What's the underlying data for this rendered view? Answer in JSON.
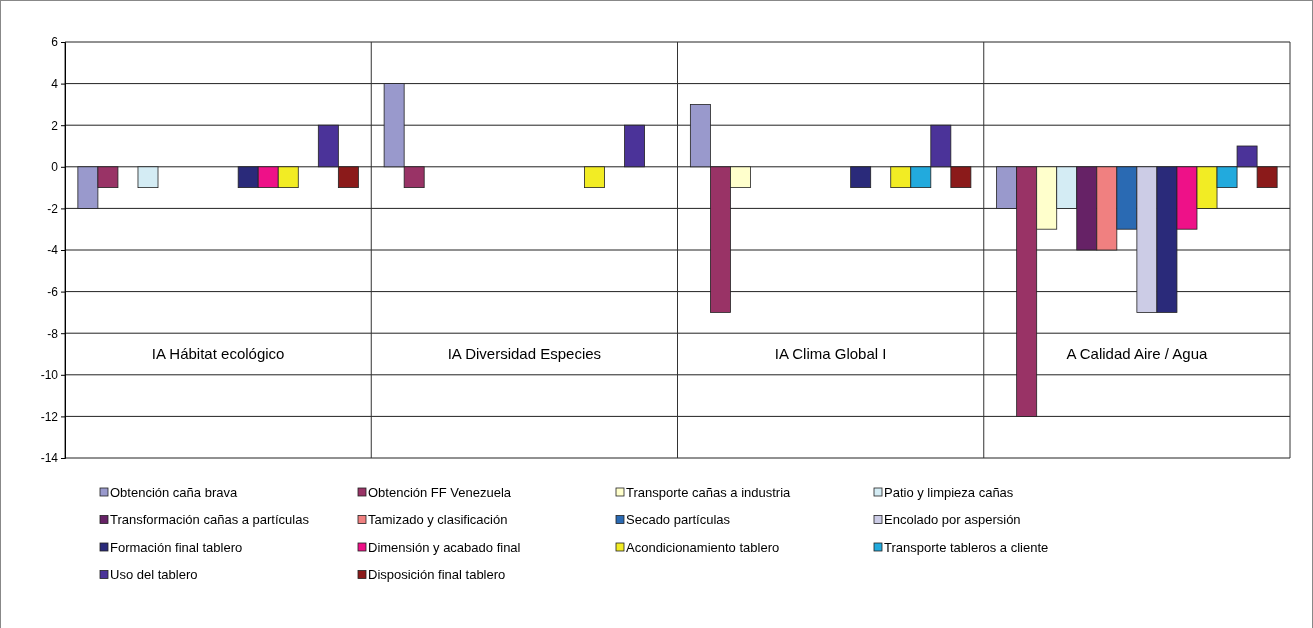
{
  "chart_data": {
    "type": "bar",
    "categories": [
      "IA Hábitat ecológico",
      "IA Diversidad Especies",
      "IA Clima Global I",
      "A Calidad Aire / Agua"
    ],
    "ylim": [
      -14,
      6
    ],
    "yticks": [
      -14,
      -12,
      -10,
      -8,
      -6,
      -4,
      -2,
      0,
      2,
      4,
      6
    ],
    "grid": "y",
    "legend": "bottom",
    "series": [
      {
        "name": "Obtención caña brava",
        "color": "#9999cc",
        "values": [
          -2,
          4,
          3,
          -2
        ]
      },
      {
        "name": "Obtención FF Venezuela",
        "color": "#993366",
        "values": [
          -1,
          -1,
          -7,
          -12
        ]
      },
      {
        "name": "Transporte cañas a industria",
        "color": "#ffffcc",
        "values": [
          0,
          0,
          -1,
          -3
        ]
      },
      {
        "name": "Patio y limpieza cañas",
        "color": "#d4ecf4",
        "values": [
          -1,
          0,
          0,
          -2
        ]
      },
      {
        "name": "Transformación cañas a partículas",
        "color": "#662266",
        "values": [
          0,
          0,
          0,
          -4
        ]
      },
      {
        "name": "Tamizado y clasificación",
        "color": "#f08080",
        "values": [
          0,
          0,
          0,
          -4
        ]
      },
      {
        "name": "Secado partículas",
        "color": "#2a6ab3",
        "values": [
          0,
          0,
          0,
          -3
        ]
      },
      {
        "name": "Encolado por aspersión",
        "color": "#cccce6",
        "values": [
          0,
          0,
          0,
          -7
        ]
      },
      {
        "name": "Formación final tablero",
        "color": "#2a2a7a",
        "values": [
          -1,
          0,
          -1,
          -7
        ]
      },
      {
        "name": "Dimensión y acabado final",
        "color": "#ee1188",
        "values": [
          -1,
          0,
          0,
          -3
        ]
      },
      {
        "name": "Acondicionamiento tablero",
        "color": "#f2ec24",
        "values": [
          -1,
          -1,
          -1,
          -2
        ]
      },
      {
        "name": "Transporte tableros a cliente",
        "color": "#22aadd",
        "values": [
          0,
          0,
          -1,
          -1
        ]
      },
      {
        "name": "Uso del tablero",
        "color": "#4b3399",
        "values": [
          2,
          2,
          2,
          1
        ]
      },
      {
        "name": "Disposición final tablero",
        "color": "#8b1a1a",
        "values": [
          -1,
          0,
          -1,
          -1
        ]
      }
    ]
  }
}
